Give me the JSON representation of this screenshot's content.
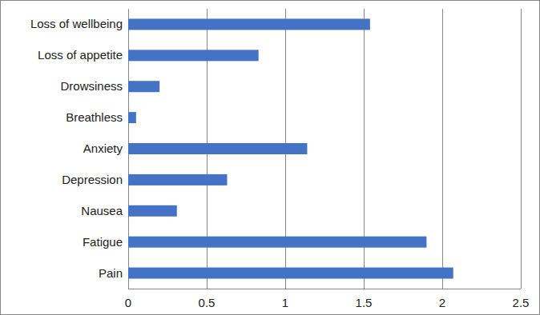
{
  "chart_data": {
    "type": "bar",
    "orientation": "horizontal",
    "categories": [
      "Loss of wellbeing",
      "Loss of appetite",
      "Drowsiness",
      "Breathless",
      "Anxiety",
      "Depression",
      "Nausea",
      "Fatigue",
      "Pain"
    ],
    "values": [
      1.54,
      0.83,
      0.2,
      0.05,
      1.14,
      0.63,
      0.31,
      1.9,
      2.07
    ],
    "color": "#4472c4",
    "xlim": [
      0,
      2.5
    ],
    "xticks": [
      0,
      0.5,
      1,
      1.5,
      2,
      2.5
    ],
    "grid": true
  }
}
